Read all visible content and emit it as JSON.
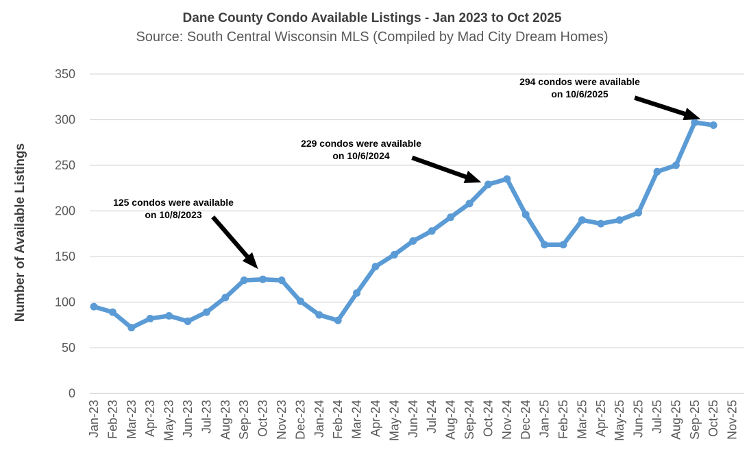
{
  "chart_data": {
    "type": "line",
    "title": "Dane County Condo Available Listings - Jan 2023 to Oct 2025",
    "subtitle": "Source: South Central Wisconsin MLS (Compiled by Mad City Dream Homes)",
    "ylabel": "Number of Available Listings",
    "xlabel": "",
    "ylim": [
      0,
      350
    ],
    "yticks": [
      0,
      50,
      100,
      150,
      200,
      250,
      300,
      350
    ],
    "grid": true,
    "legend": false,
    "colors": {
      "line": "#5B9BD5",
      "marker": "#5B9BD5",
      "gridline": "#d9d9d9",
      "axis_text": "#595959",
      "title_text": "#3f3f3f",
      "subtitle_text": "#595959",
      "annotation_text": "#000000",
      "arrow": "#000000",
      "background": "#ffffff"
    },
    "categories": [
      "Jan-23",
      "Feb-23",
      "Mar-23",
      "Apr-23",
      "May-23",
      "Jun-23",
      "Jul-23",
      "Aug-23",
      "Sep-23",
      "Oct-23",
      "Nov-23",
      "Dec-23",
      "Jan-24",
      "Feb-24",
      "Mar-24",
      "Apr-24",
      "May-24",
      "Jun-24",
      "Jul-24",
      "Aug-24",
      "Sep-24",
      "Oct-24",
      "Nov-24",
      "Dec-24",
      "Jan-25",
      "Feb-25",
      "Mar-25",
      "Apr-25",
      "May-25",
      "Jun-25",
      "Jul-25",
      "Aug-25",
      "Sep-25",
      "Oct-25",
      "Nov-25"
    ],
    "series": [
      {
        "name": "Available Listings",
        "values": [
          95,
          89,
          72,
          82,
          85,
          79,
          89,
          105,
          124,
          125,
          124,
          101,
          86,
          80,
          110,
          139,
          152,
          167,
          178,
          193,
          208,
          229,
          235,
          196,
          163,
          163,
          190,
          186,
          190,
          198,
          243,
          250,
          297,
          294
        ]
      }
    ],
    "annotations": [
      {
        "line1": "125 condos were available",
        "line2": "on 10/8/2023",
        "value": 125,
        "date": "10/8/2023",
        "target_category": "Oct-23"
      },
      {
        "line1": "229 condos were available",
        "line2": "on 10/6/2024",
        "value": 229,
        "date": "10/6/2024",
        "target_category": "Oct-24"
      },
      {
        "line1": "294 condos were available",
        "line2": "on 10/6/2025",
        "value": 294,
        "date": "10/6/2025",
        "target_category": "Oct-25"
      }
    ]
  }
}
